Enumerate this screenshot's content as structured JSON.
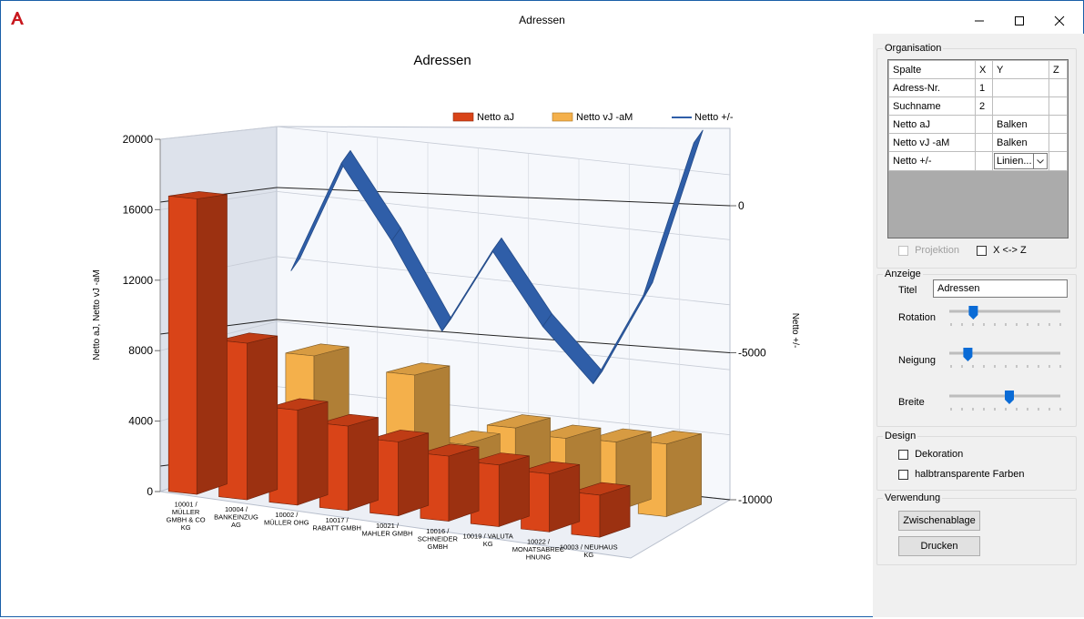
{
  "window": {
    "title": "Adressen",
    "minimize_glyph": "—",
    "maximize_glyph": "☐",
    "close_glyph": "✕",
    "logo_icon": "app-logo-icon",
    "accent": "#1a5fa8"
  },
  "chart_data": {
    "type": "bar",
    "title": "Adressen",
    "categories": [
      [
        "10001 /",
        "MÜLLER",
        "GMBH & CO",
        "KG"
      ],
      [
        "10004 /",
        "BANKEINZUG",
        "AG"
      ],
      [
        "10002 /",
        "MÜLLER OHG"
      ],
      [
        "10017 /",
        "RABATT GMBH"
      ],
      [
        "10021 /",
        "MAHLER GMBH"
      ],
      [
        "10016 /",
        "SCHNEIDER",
        "GMBH"
      ],
      [
        "10019 / VALUTA",
        "KG"
      ],
      [
        "10022 /",
        "MONATSABREC",
        "HNUNG"
      ],
      [
        "10003 / NEUHAUS",
        "KG"
      ]
    ],
    "series": [
      {
        "name": "Netto aJ",
        "type": "bar",
        "color": "#d94418",
        "values": [
          16800,
          8900,
          5400,
          4800,
          4200,
          3700,
          3500,
          3300,
          2400
        ]
      },
      {
        "name": "Netto vJ -aM",
        "type": "bar",
        "color": "#f4b04b",
        "values": [
          0,
          7300,
          0,
          6800,
          3000,
          4300,
          4000,
          4100,
          4300
        ]
      },
      {
        "name": "Netto +/-",
        "type": "line",
        "color": "#2f5ea8",
        "values": [
          -1800,
          2300,
          -500,
          -3700,
          -700,
          -3300,
          -5200,
          -2000,
          3300
        ]
      }
    ],
    "ylabel": "Netto aJ, Netto vJ -aM",
    "y2label": "Netto +/-",
    "yticks": [
      "0",
      "4000",
      "8000",
      "12000",
      "16000",
      "20000"
    ],
    "ylim": [
      0,
      20000
    ],
    "y2ticks": [
      "0",
      "-5000",
      "-10000"
    ],
    "y2lim": [
      -10000,
      0
    ],
    "legend_position": "top-right",
    "grid": true,
    "view": "3d"
  },
  "panel": {
    "organisation": {
      "legend": "Organisation",
      "headers": [
        "Spalte",
        "X",
        "Y",
        "Z"
      ],
      "rows": [
        {
          "spalte": "Adress-Nr.",
          "x": "1",
          "y": "",
          "z": ""
        },
        {
          "spalte": "Suchname",
          "x": "2",
          "y": "",
          "z": ""
        },
        {
          "spalte": "Netto aJ",
          "x": "",
          "y": "Balken",
          "z": ""
        },
        {
          "spalte": "Netto vJ -aM",
          "x": "",
          "y": "Balken",
          "z": ""
        },
        {
          "spalte": "Netto +/-",
          "x": "",
          "y": "Linien...",
          "z": ""
        }
      ],
      "projektion_label": "Projektion",
      "swap_label": "X <-> Z"
    },
    "anzeige": {
      "legend": "Anzeige",
      "titel_label": "Titel",
      "titel_value": "Adressen",
      "rotation_label": "Rotation",
      "rotation_value": 0.22,
      "neigung_label": "Neigung",
      "neigung_value": 0.17,
      "breite_label": "Breite",
      "breite_value": 0.55
    },
    "design": {
      "legend": "Design",
      "dekoration_label": "Dekoration",
      "halbtransparent_label": "halbtransparente Farben"
    },
    "verwendung": {
      "legend": "Verwendung",
      "zwischenablage_label": "Zwischenablage",
      "drucken_label": "Drucken"
    }
  }
}
